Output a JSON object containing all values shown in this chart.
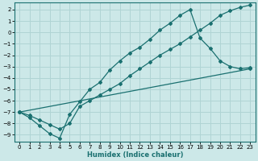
{
  "xlabel": "Humidex (Indice chaleur)",
  "bg_color": "#cce8e8",
  "grid_color": "#b0d4d4",
  "line_color": "#1a7070",
  "xlim": [
    -0.5,
    23.5
  ],
  "ylim": [
    -9.6,
    2.6
  ],
  "xticks": [
    0,
    1,
    2,
    3,
    4,
    5,
    6,
    7,
    8,
    9,
    10,
    11,
    12,
    13,
    14,
    15,
    16,
    17,
    18,
    19,
    20,
    21,
    22,
    23
  ],
  "yticks": [
    2,
    1,
    0,
    -1,
    -2,
    -3,
    -4,
    -5,
    -6,
    -7,
    -8,
    -9
  ],
  "line1_x": [
    0,
    1,
    2,
    3,
    4,
    5,
    6,
    7,
    8,
    9,
    10,
    11,
    12,
    13,
    14,
    15,
    16,
    17,
    18,
    19,
    20,
    21,
    22,
    23
  ],
  "line1_y": [
    -7.0,
    -7.5,
    -8.2,
    -8.9,
    -9.3,
    -7.2,
    -6.1,
    -5.0,
    -4.4,
    -3.3,
    -2.5,
    -1.8,
    -1.3,
    -0.6,
    0.2,
    0.8,
    1.5,
    2.0,
    -0.5,
    -1.4,
    -2.5,
    -3.0,
    -3.2,
    -3.1
  ],
  "line2_x": [
    0,
    1,
    2,
    3,
    4,
    5,
    6,
    7,
    8,
    9,
    10,
    11,
    12,
    13,
    14,
    15,
    16,
    17,
    18,
    19,
    20,
    21,
    22,
    23
  ],
  "line2_y": [
    -7.0,
    -7.3,
    -7.7,
    -8.1,
    -8.5,
    -8.0,
    -6.5,
    -6.0,
    -5.5,
    -5.0,
    -4.5,
    -3.8,
    -3.2,
    -2.6,
    -2.0,
    -1.5,
    -1.0,
    -0.4,
    0.2,
    0.8,
    1.5,
    1.9,
    2.2,
    2.4
  ],
  "line3_x": [
    0,
    23
  ],
  "line3_y": [
    -7.0,
    -3.2
  ]
}
